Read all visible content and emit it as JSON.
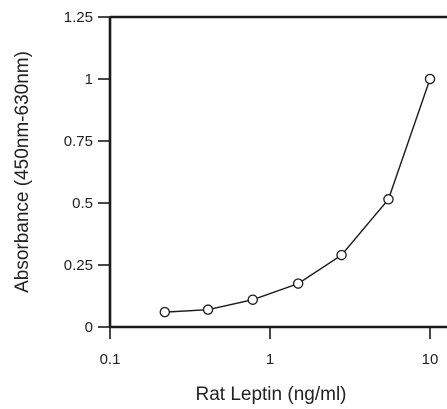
{
  "chart_data": {
    "type": "line",
    "xlabel": "Rat Leptin (ng/ml)",
    "ylabel": "Absorbance (450nm-630nm)",
    "xscale": "log",
    "xlim": [
      0.1,
      10
    ],
    "ylim": [
      0,
      1.25
    ],
    "x_ticks": [
      {
        "value": 0.1,
        "label": "0.1"
      },
      {
        "value": 1,
        "label": "1"
      },
      {
        "value": 10,
        "label": "10"
      }
    ],
    "y_ticks": [
      {
        "value": 0,
        "label": "0"
      },
      {
        "value": 0.25,
        "label": "0.25"
      },
      {
        "value": 0.5,
        "label": "0.5"
      },
      {
        "value": 0.75,
        "label": "0.75"
      },
      {
        "value": 1,
        "label": "1"
      },
      {
        "value": 1.25,
        "label": "1.25"
      }
    ],
    "grid": false,
    "legend": "none",
    "series": [
      {
        "x": [
          0.22,
          0.41,
          0.78,
          1.5,
          2.8,
          5.5,
          10
        ],
        "values": [
          0.06,
          0.07,
          0.11,
          0.175,
          0.29,
          0.515,
          1.0
        ]
      }
    ]
  }
}
